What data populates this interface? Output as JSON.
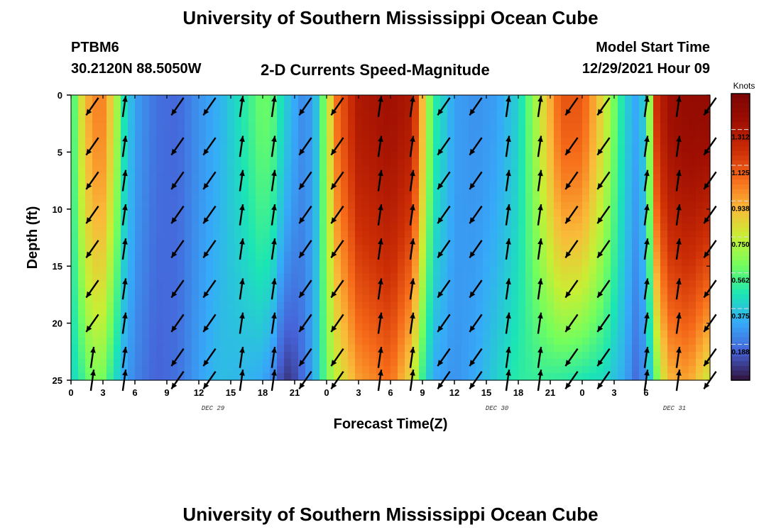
{
  "header": {
    "title": "University of Southern Mississippi Ocean Cube",
    "station": "PTBM6",
    "location": "30.2120N  88.5050W",
    "subtitle": "2-D Currents Speed-Magnitude",
    "model_label": "Model Start Time",
    "model_time": "12/29/2021 Hour 09",
    "bottom_title": "University of Southern Mississippi Ocean Cube"
  },
  "chart_data": {
    "type": "heatmap",
    "xlabel": "Forecast Time(Z)",
    "ylabel": "Depth (ft)",
    "x_tick_labels": [
      "0",
      "3",
      "6",
      "9",
      "12",
      "15",
      "18",
      "21",
      "0",
      "3",
      "6",
      "9",
      "12",
      "15",
      "18",
      "21",
      "0",
      "3",
      "6"
    ],
    "date_labels": [
      "DEC 29",
      "DEC 30",
      "DEC 31"
    ],
    "y_ticks": [
      0,
      5,
      10,
      15,
      20,
      25
    ],
    "ylim": [
      0,
      25
    ],
    "colorbar": {
      "unit": "Knots",
      "ticks": [
        "0.188",
        "0.375",
        "0.562",
        "0.750",
        "0.938",
        "1.125",
        "1.312"
      ],
      "range": [
        0,
        1.5
      ]
    },
    "colors": {
      "low": "#30123b",
      "high": "#7a0403"
    },
    "vector_times_h": [
      2,
      5,
      10,
      13,
      16,
      19,
      22,
      25,
      29,
      32,
      35,
      38,
      41,
      44,
      47,
      50,
      54,
      57,
      60
    ],
    "vector_depths_ft": [
      1,
      4.5,
      7.5,
      10.5,
      13.5,
      17,
      20,
      23,
      25
    ],
    "speed_profile": [
      {
        "t": 0,
        "top": 0.45,
        "bot": 0.4
      },
      {
        "t": 1,
        "top": 0.8,
        "bot": 0.5
      },
      {
        "t": 2,
        "top": 1.0,
        "bot": 0.62
      },
      {
        "t": 3,
        "top": 1.0,
        "bot": 0.6
      },
      {
        "t": 4,
        "top": 0.8,
        "bot": 0.45
      },
      {
        "t": 5,
        "top": 0.45,
        "bot": 0.3
      },
      {
        "t": 6,
        "top": 0.28,
        "bot": 0.22
      },
      {
        "t": 8,
        "top": 0.18,
        "bot": 0.15
      },
      {
        "t": 10,
        "top": 0.16,
        "bot": 0.18
      },
      {
        "t": 12,
        "top": 0.25,
        "bot": 0.28
      },
      {
        "t": 14,
        "top": 0.32,
        "bot": 0.35
      },
      {
        "t": 16,
        "top": 0.45,
        "bot": 0.33
      },
      {
        "t": 18,
        "top": 0.6,
        "bot": 0.3
      },
      {
        "t": 19,
        "top": 0.55,
        "bot": 0.22
      },
      {
        "t": 20,
        "top": 0.4,
        "bot": 0.06
      },
      {
        "t": 21,
        "top": 0.3,
        "bot": 0.1
      },
      {
        "t": 22,
        "top": 0.22,
        "bot": 0.2
      },
      {
        "t": 23,
        "top": 0.35,
        "bot": 0.35
      },
      {
        "t": 24,
        "top": 0.7,
        "bot": 0.6
      },
      {
        "t": 25,
        "top": 1.05,
        "bot": 0.75
      },
      {
        "t": 27,
        "top": 1.3,
        "bot": 0.95
      },
      {
        "t": 30,
        "top": 1.35,
        "bot": 1.05
      },
      {
        "t": 32,
        "top": 1.3,
        "bot": 0.8
      },
      {
        "t": 33,
        "top": 0.9,
        "bot": 0.5
      },
      {
        "t": 34,
        "top": 0.5,
        "bot": 0.3
      },
      {
        "t": 36,
        "top": 0.28,
        "bot": 0.25
      },
      {
        "t": 38,
        "top": 0.25,
        "bot": 0.3
      },
      {
        "t": 40,
        "top": 0.28,
        "bot": 0.4
      },
      {
        "t": 42,
        "top": 0.4,
        "bot": 0.48
      },
      {
        "t": 44,
        "top": 0.75,
        "bot": 0.5
      },
      {
        "t": 46,
        "top": 1.1,
        "bot": 0.48
      },
      {
        "t": 48,
        "top": 1.1,
        "bot": 0.45
      },
      {
        "t": 50,
        "top": 0.8,
        "bot": 0.42
      },
      {
        "t": 52,
        "top": 0.4,
        "bot": 0.3
      },
      {
        "t": 53,
        "top": 0.3,
        "bot": 0.18
      },
      {
        "t": 54,
        "top": 0.4,
        "bot": 0.25
      },
      {
        "t": 55,
        "top": 1.2,
        "bot": 0.6
      },
      {
        "t": 56,
        "top": 1.35,
        "bot": 0.9
      },
      {
        "t": 58,
        "top": 1.4,
        "bot": 0.95
      },
      {
        "t": 60,
        "top": 1.4,
        "bot": 0.75
      }
    ]
  }
}
